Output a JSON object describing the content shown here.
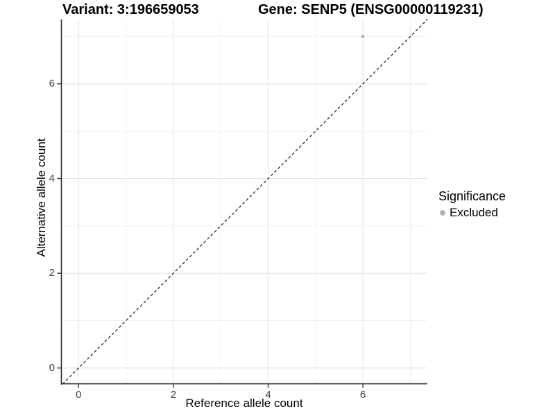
{
  "titles": {
    "variant": "Variant: 3:196659053",
    "gene": "Gene: SENP5 (ENSG00000119231)"
  },
  "axes": {
    "x_label": "Reference allele count",
    "y_label": "Alternative allele count"
  },
  "legend": {
    "title": "Significance",
    "items": [
      {
        "label": "Excluded",
        "color": "#b4b4b4"
      }
    ]
  },
  "chart_data": {
    "type": "scatter",
    "title_left": "Variant: 3:196659053",
    "title_right": "Gene: SENP5 (ENSG00000119231)",
    "xlabel": "Reference allele count",
    "ylabel": "Alternative allele count",
    "xlim": [
      -0.37,
      7.36
    ],
    "ylim": [
      -0.34,
      7.36
    ],
    "x_ticks": [
      0,
      2,
      4,
      6
    ],
    "y_ticks": [
      0,
      2,
      4,
      6
    ],
    "x_minor_ticks": [
      1,
      3,
      5,
      7
    ],
    "y_minor_ticks": [
      1,
      3,
      5,
      7
    ],
    "grid": true,
    "legend_position": "right",
    "series": [
      {
        "name": "Excluded",
        "color": "#b4b4b4",
        "points": [
          {
            "x": 6,
            "y": 7
          }
        ]
      }
    ],
    "identity_line": {
      "slope": 1,
      "intercept": 0,
      "style": "dashed",
      "color": "#111111"
    }
  },
  "colors": {
    "background": "#ffffff",
    "grid_major": "#e4e4e4",
    "grid_minor": "#ededed",
    "axis_line": "#333333",
    "tick_label": "#404040",
    "point": "#b4b4b4"
  }
}
